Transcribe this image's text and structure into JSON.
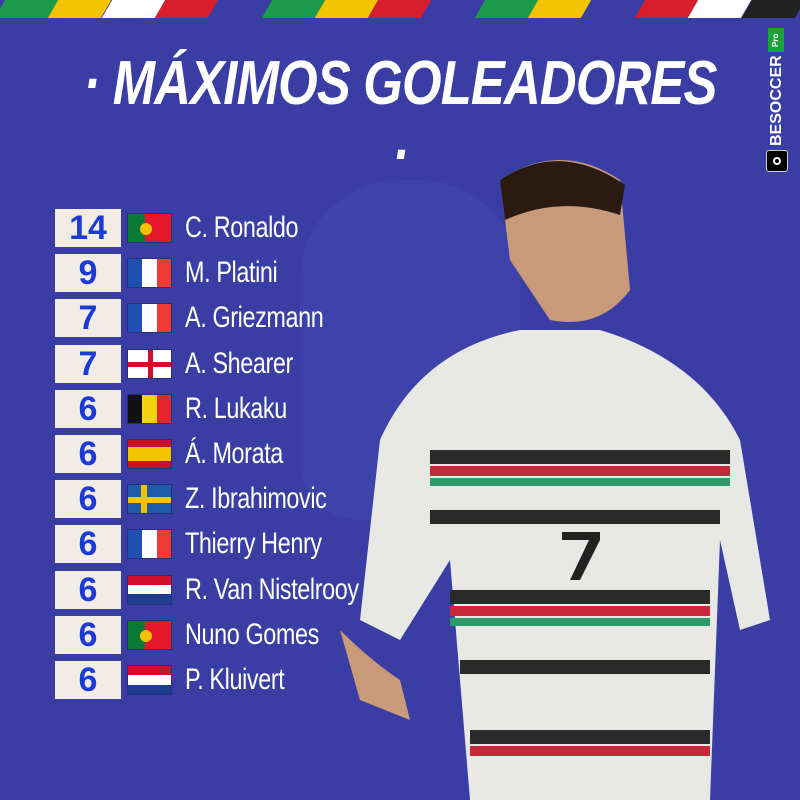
{
  "title": "· MÁXIMOS GOLEADORES ·",
  "logo": {
    "brand": "BESOCCER",
    "badge": "Pro"
  },
  "colors": {
    "background": "#3a3ea4",
    "number_box": "#f1ede6",
    "number_text": "#1c3ad6"
  },
  "scorers": [
    {
      "goals": "14",
      "name": "C. Ronaldo",
      "flag": "portugal"
    },
    {
      "goals": "9",
      "name": "M. Platini",
      "flag": "france"
    },
    {
      "goals": "7",
      "name": "A. Griezmann",
      "flag": "france"
    },
    {
      "goals": "7",
      "name": "A. Shearer",
      "flag": "england"
    },
    {
      "goals": "6",
      "name": "R. Lukaku",
      "flag": "belgium"
    },
    {
      "goals": "6",
      "name": "Á. Morata",
      "flag": "spain"
    },
    {
      "goals": "6",
      "name": "Z. Ibrahimovic",
      "flag": "sweden"
    },
    {
      "goals": "6",
      "name": "Thierry Henry",
      "flag": "france"
    },
    {
      "goals": "6",
      "name": "R. Van Nistelrooy",
      "flag": "netherlands"
    },
    {
      "goals": "6",
      "name": "Nuno Gomes",
      "flag": "portugal"
    },
    {
      "goals": "6",
      "name": "P. Kluivert",
      "flag": "netherlands"
    }
  ]
}
